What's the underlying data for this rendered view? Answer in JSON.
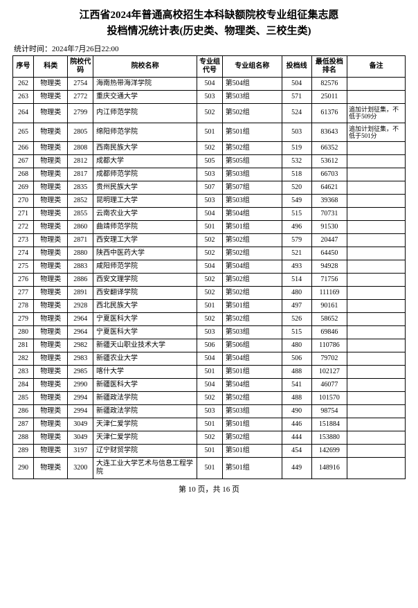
{
  "header": {
    "title_line1": "江西省2024年普通高校招生本科缺额院校专业组征集志愿",
    "title_line2": "投档情况统计表(历史类、物理类、三校生类)",
    "timestamp": "统计时间：2024年7月26日22:00"
  },
  "columns": {
    "seq": "序号",
    "category": "科类",
    "school_code": "院校代码",
    "school_name": "院校名称",
    "group_code": "专业组代号",
    "group_name": "专业组名称",
    "line": "投档线",
    "rank": "最低投档排名",
    "remark": "备注"
  },
  "rows": [
    {
      "seq": "262",
      "cat": "物理类",
      "code": "2754",
      "name": "海南热带海洋学院",
      "gcode": "504",
      "gname": "第504组",
      "line": "504",
      "rank": "82576",
      "rem": ""
    },
    {
      "seq": "263",
      "cat": "物理类",
      "code": "2772",
      "name": "重庆交通大学",
      "gcode": "503",
      "gname": "第503组",
      "line": "571",
      "rank": "25011",
      "rem": ""
    },
    {
      "seq": "264",
      "cat": "物理类",
      "code": "2799",
      "name": "内江师范学院",
      "gcode": "502",
      "gname": "第502组",
      "line": "524",
      "rank": "61376",
      "rem": "追加计划征集，不低于509分"
    },
    {
      "seq": "265",
      "cat": "物理类",
      "code": "2805",
      "name": "绵阳师范学院",
      "gcode": "501",
      "gname": "第501组",
      "line": "503",
      "rank": "83643",
      "rem": "追加计划征集，不低于501分"
    },
    {
      "seq": "266",
      "cat": "物理类",
      "code": "2808",
      "name": "西南民族大学",
      "gcode": "502",
      "gname": "第502组",
      "line": "519",
      "rank": "66352",
      "rem": ""
    },
    {
      "seq": "267",
      "cat": "物理类",
      "code": "2812",
      "name": "成都大学",
      "gcode": "505",
      "gname": "第505组",
      "line": "532",
      "rank": "53612",
      "rem": ""
    },
    {
      "seq": "268",
      "cat": "物理类",
      "code": "2817",
      "name": "成都师范学院",
      "gcode": "503",
      "gname": "第503组",
      "line": "518",
      "rank": "66703",
      "rem": ""
    },
    {
      "seq": "269",
      "cat": "物理类",
      "code": "2835",
      "name": "贵州民族大学",
      "gcode": "507",
      "gname": "第507组",
      "line": "520",
      "rank": "64621",
      "rem": ""
    },
    {
      "seq": "270",
      "cat": "物理类",
      "code": "2852",
      "name": "昆明理工大学",
      "gcode": "503",
      "gname": "第503组",
      "line": "549",
      "rank": "39368",
      "rem": ""
    },
    {
      "seq": "271",
      "cat": "物理类",
      "code": "2855",
      "name": "云南农业大学",
      "gcode": "504",
      "gname": "第504组",
      "line": "515",
      "rank": "70731",
      "rem": ""
    },
    {
      "seq": "272",
      "cat": "物理类",
      "code": "2860",
      "name": "曲靖师范学院",
      "gcode": "501",
      "gname": "第501组",
      "line": "496",
      "rank": "91530",
      "rem": ""
    },
    {
      "seq": "273",
      "cat": "物理类",
      "code": "2871",
      "name": "西安理工大学",
      "gcode": "502",
      "gname": "第502组",
      "line": "579",
      "rank": "20447",
      "rem": ""
    },
    {
      "seq": "274",
      "cat": "物理类",
      "code": "2880",
      "name": "陕西中医药大学",
      "gcode": "502",
      "gname": "第502组",
      "line": "521",
      "rank": "64450",
      "rem": ""
    },
    {
      "seq": "275",
      "cat": "物理类",
      "code": "2883",
      "name": "咸阳师范学院",
      "gcode": "504",
      "gname": "第504组",
      "line": "493",
      "rank": "94928",
      "rem": ""
    },
    {
      "seq": "276",
      "cat": "物理类",
      "code": "2886",
      "name": "西安文理学院",
      "gcode": "502",
      "gname": "第502组",
      "line": "514",
      "rank": "71756",
      "rem": ""
    },
    {
      "seq": "277",
      "cat": "物理类",
      "code": "2891",
      "name": "西安翻译学院",
      "gcode": "502",
      "gname": "第502组",
      "line": "480",
      "rank": "111169",
      "rem": ""
    },
    {
      "seq": "278",
      "cat": "物理类",
      "code": "2928",
      "name": "西北民族大学",
      "gcode": "501",
      "gname": "第501组",
      "line": "497",
      "rank": "90161",
      "rem": ""
    },
    {
      "seq": "279",
      "cat": "物理类",
      "code": "2964",
      "name": "宁夏医科大学",
      "gcode": "502",
      "gname": "第502组",
      "line": "526",
      "rank": "58652",
      "rem": ""
    },
    {
      "seq": "280",
      "cat": "物理类",
      "code": "2964",
      "name": "宁夏医科大学",
      "gcode": "503",
      "gname": "第503组",
      "line": "515",
      "rank": "69846",
      "rem": ""
    },
    {
      "seq": "281",
      "cat": "物理类",
      "code": "2982",
      "name": "新疆天山职业技术大学",
      "gcode": "506",
      "gname": "第506组",
      "line": "480",
      "rank": "110786",
      "rem": ""
    },
    {
      "seq": "282",
      "cat": "物理类",
      "code": "2983",
      "name": "新疆农业大学",
      "gcode": "504",
      "gname": "第504组",
      "line": "506",
      "rank": "79702",
      "rem": ""
    },
    {
      "seq": "283",
      "cat": "物理类",
      "code": "2985",
      "name": "喀什大学",
      "gcode": "501",
      "gname": "第501组",
      "line": "488",
      "rank": "102127",
      "rem": ""
    },
    {
      "seq": "284",
      "cat": "物理类",
      "code": "2990",
      "name": "新疆医科大学",
      "gcode": "504",
      "gname": "第504组",
      "line": "541",
      "rank": "46077",
      "rem": ""
    },
    {
      "seq": "285",
      "cat": "物理类",
      "code": "2994",
      "name": "新疆政法学院",
      "gcode": "502",
      "gname": "第502组",
      "line": "488",
      "rank": "101570",
      "rem": ""
    },
    {
      "seq": "286",
      "cat": "物理类",
      "code": "2994",
      "name": "新疆政法学院",
      "gcode": "503",
      "gname": "第503组",
      "line": "490",
      "rank": "98754",
      "rem": ""
    },
    {
      "seq": "287",
      "cat": "物理类",
      "code": "3049",
      "name": "天津仁爱学院",
      "gcode": "501",
      "gname": "第501组",
      "line": "446",
      "rank": "151884",
      "rem": ""
    },
    {
      "seq": "288",
      "cat": "物理类",
      "code": "3049",
      "name": "天津仁爱学院",
      "gcode": "502",
      "gname": "第502组",
      "line": "444",
      "rank": "153880",
      "rem": ""
    },
    {
      "seq": "289",
      "cat": "物理类",
      "code": "3197",
      "name": "辽宁财贸学院",
      "gcode": "501",
      "gname": "第501组",
      "line": "454",
      "rank": "142699",
      "rem": ""
    },
    {
      "seq": "290",
      "cat": "物理类",
      "code": "3200",
      "name": "大连工业大学艺术与信息工程学院",
      "gcode": "501",
      "gname": "第501组",
      "line": "449",
      "rank": "148916",
      "rem": ""
    }
  ],
  "footer": {
    "page_info": "第 10 页，共 16 页"
  }
}
